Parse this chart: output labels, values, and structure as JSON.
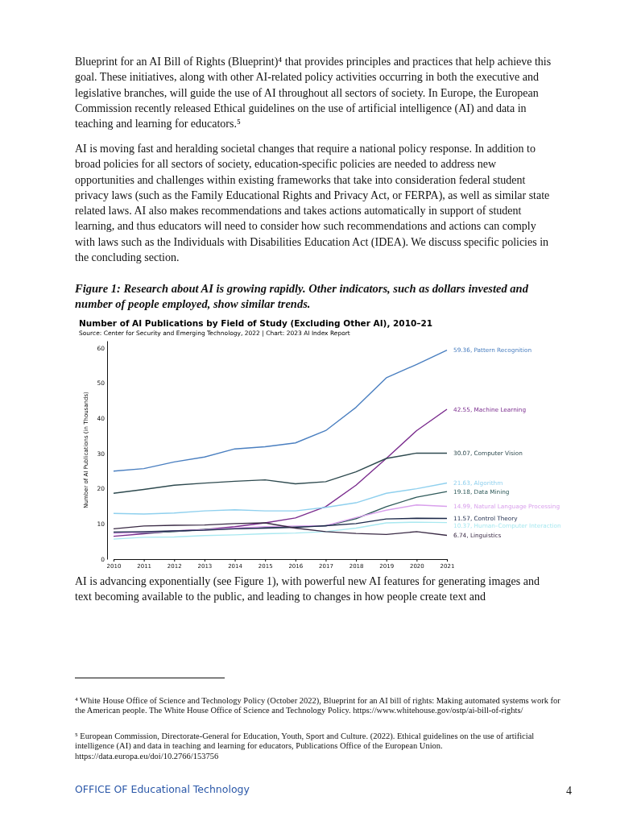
{
  "chart_data": {
    "type": "line",
    "title": "Number of AI Publications by Field of Study (Excluding Other AI), 2010–21",
    "subtitle": "Source: Center for Security and Emerging Technology, 2022 | Chart: 2023 AI Index Report",
    "ylabel": "Number of AI Publications (in Thousands)",
    "x": [
      2010,
      2011,
      2012,
      2013,
      2014,
      2015,
      2016,
      2017,
      2018,
      2019,
      2020,
      2021
    ],
    "xlim": [
      2010,
      2021
    ],
    "xticks": [
      2010,
      2011,
      2012,
      2013,
      2014,
      2015,
      2016,
      2017,
      2018,
      2019,
      2020,
      2021
    ],
    "ylim": [
      0,
      62
    ],
    "yticks": [
      0,
      10,
      20,
      30,
      40,
      50,
      60
    ],
    "grid": false,
    "marker": "none",
    "line_style": "solid",
    "series": [
      {
        "name": "59.36, Pattern Recognition",
        "color": "#4a7fc0",
        "values": [
          25.0,
          25.7,
          27.6,
          29.0,
          31.3,
          31.9,
          33.0,
          36.5,
          43.1,
          51.5,
          55.3,
          59.36
        ]
      },
      {
        "name": "42.55, Machine Learning",
        "color": "#7b2d8e",
        "values": [
          6.5,
          7.2,
          8.0,
          8.4,
          9.2,
          10.3,
          11.7,
          14.9,
          21.0,
          28.6,
          36.5,
          42.55
        ]
      },
      {
        "name": "30.07, Computer Vision",
        "color": "#2e4a4f",
        "values": [
          18.7,
          19.8,
          21.0,
          21.6,
          22.1,
          22.5,
          21.4,
          22.0,
          24.8,
          28.6,
          30.1,
          30.07
        ]
      },
      {
        "name": "21.63, Algorithm",
        "color": "#8fd0ee",
        "values": [
          13.0,
          12.8,
          13.1,
          13.7,
          14.0,
          13.7,
          13.7,
          14.7,
          16.0,
          18.7,
          20.0,
          21.63
        ]
      },
      {
        "name": "19.18, Data Mining",
        "color": "#2f5a5a",
        "values": [
          7.6,
          7.4,
          7.8,
          8.4,
          8.7,
          9.0,
          9.2,
          9.4,
          11.5,
          14.9,
          17.6,
          19.18
        ]
      },
      {
        "name": "14.99, Natural Language Processing",
        "color": "#d9a0ec",
        "values": [
          7.3,
          7.6,
          8.0,
          8.3,
          8.8,
          9.2,
          9.4,
          9.5,
          11.8,
          13.9,
          15.4,
          14.99
        ]
      },
      {
        "name": "11.57, Control Theory",
        "color": "#1d2a4a",
        "values": [
          7.7,
          7.8,
          8.0,
          8.2,
          8.6,
          8.8,
          9.0,
          9.5,
          10.1,
          11.4,
          11.6,
          11.57
        ]
      },
      {
        "name": "10.37, Human–Computer Interaction",
        "color": "#a8e8f0",
        "values": [
          5.7,
          6.2,
          6.3,
          6.7,
          6.9,
          7.2,
          7.4,
          7.8,
          8.8,
          10.3,
          10.5,
          10.37
        ]
      },
      {
        "name": "6.74, Linguistics",
        "color": "#3a2a45",
        "values": [
          8.6,
          9.4,
          9.6,
          9.7,
          10.1,
          10.3,
          8.8,
          7.8,
          7.3,
          7.0,
          7.8,
          6.74
        ]
      }
    ],
    "annotations": [
      "Blueprint for an AI Bill of Rights (Blueprint)⁴ that provides principles and practices that help achieve this goal. These initiatives, along with other AI-related policy activities occurring in both the executive and legislative branches, will guide the use of AI throughout all sectors of society. In Europe, the European Commission recently released Ethical guidelines on the use of artificial intelligence (AI) and data in teaching and learning for educators.⁵",
      "AI is moving fast and heralding societal changes that require a national policy response. In addition to broad policies for all sectors of society, education-specific policies are needed to address new opportunities and challenges within existing frameworks that take into consideration federal student privacy laws (such as the Family Educational Rights and Privacy Act, or FERPA), as well as similar state related laws. AI also makes recommendations and takes actions automatically in support of student learning, and thus educators will need to consider how such recommendations and actions can comply with laws such as the Individuals with Disabilities Education Act (IDEA). We discuss specific policies in the concluding section.",
      "Figure 1: Research about AI is growing rapidly. Other indicators, such as dollars invested and number of people employed, show similar trends.",
      "AI is advancing exponentially (see Figure 1), with powerful new AI features for generating images and text becoming available to the public, and leading to changes in how people create text and",
      "⁴ White House Office of Science and Technology Policy (October 2022), Blueprint for an AI bill of rights: Making automated systems work for the American people. The White House Office of Science and Technology Policy. https://www.whitehouse.gov/ostp/ai-bill-of-rights/",
      "⁵ European Commission, Directorate-General for Education, Youth, Sport and Culture. (2022). Ethical guidelines on the use of artificial intelligence (AI) and data in teaching and learning for educators, Publications Office of the European Union. https://data.europa.eu/doi/10.2766/153756",
      "OFFICE OF Educational Technology",
      "4"
    ]
  }
}
